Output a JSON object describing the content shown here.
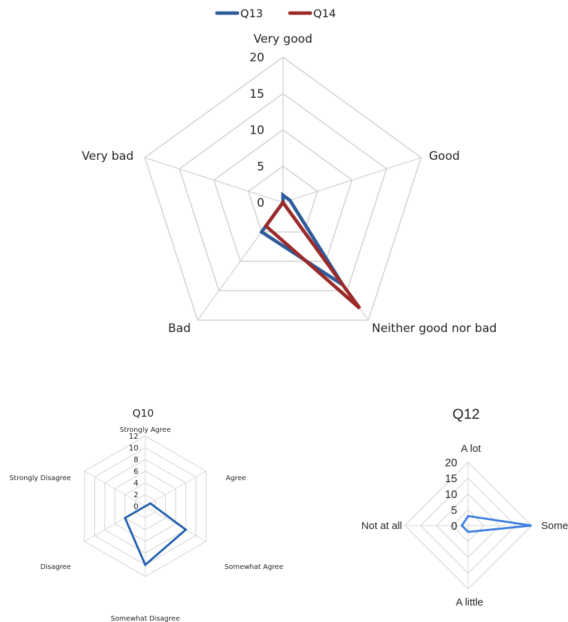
{
  "chart_data": [
    {
      "type": "radar",
      "title": "",
      "categories": [
        "Very good",
        "Good",
        "Neither good nor bad",
        "Bad",
        "Very bad"
      ],
      "rlim": [
        0,
        20
      ],
      "ticks": [
        "0",
        "5",
        "10",
        "15",
        "20"
      ],
      "legend_position": "top",
      "series": [
        {
          "name": "Q13",
          "color": "#2e5b9a",
          "values": [
            1,
            1,
            14,
            5,
            0
          ]
        },
        {
          "name": "Q14",
          "color": "#9b2a2a",
          "values": [
            0,
            0,
            18,
            4,
            0
          ]
        }
      ]
    },
    {
      "type": "radar",
      "title": "Q10",
      "categories": [
        "Strongly Agree",
        "Agree",
        "Somewhat Agree",
        "Somewhat Disagree",
        "Disagree",
        "Strongly Disagree"
      ],
      "rlim": [
        0,
        12
      ],
      "ticks": [
        "0",
        "2",
        "4",
        "6",
        "8",
        "10",
        "12"
      ],
      "series": [
        {
          "name": "",
          "color": "#1f5fad",
          "values": [
            0,
            1,
            8,
            10,
            4,
            0
          ]
        }
      ]
    },
    {
      "type": "radar",
      "title": "Q12",
      "categories": [
        "A lot",
        "Some",
        "A little",
        "Not at all"
      ],
      "rlim": [
        0,
        20
      ],
      "ticks": [
        "0",
        "5",
        "10",
        "15",
        "20"
      ],
      "series": [
        {
          "name": "",
          "color": "#3b7ee0",
          "values": [
            3,
            20,
            2,
            2
          ]
        }
      ]
    }
  ]
}
